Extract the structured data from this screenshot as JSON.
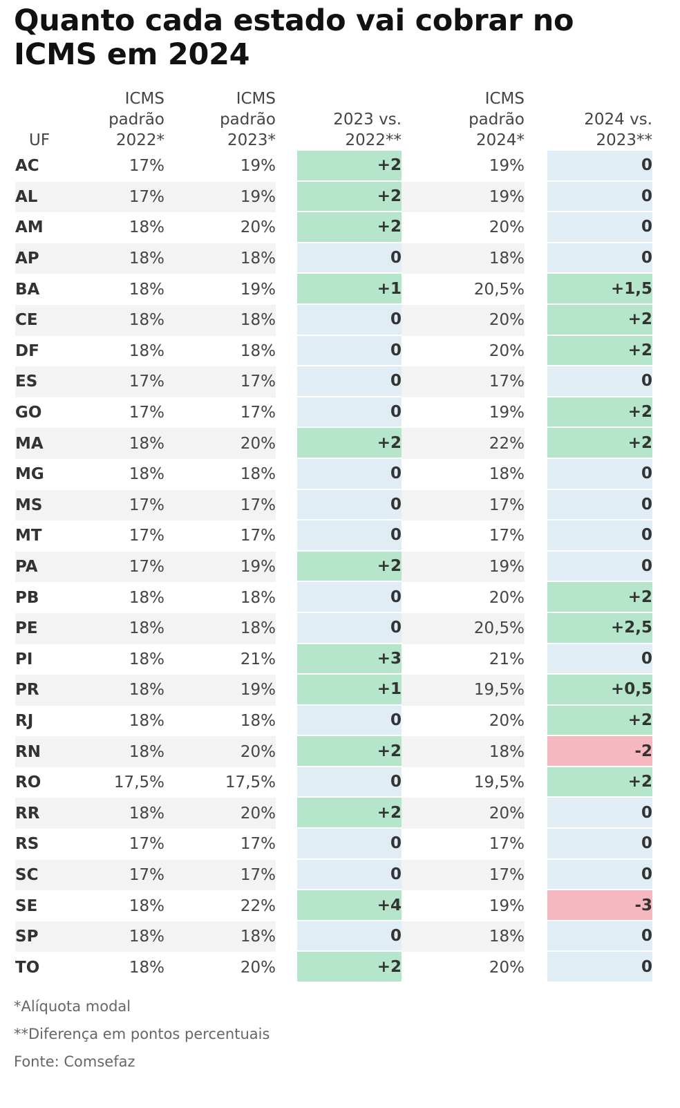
{
  "title": "Quanto cada estado vai cobrar no ICMS em 2024",
  "colors": {
    "increase": "#b5e6cc",
    "no_change": "#e1edf5",
    "decrease": "#f5b8c1",
    "row_shade": "#f3f3f3"
  },
  "chart_data": {
    "type": "table",
    "title": "Quanto cada estado vai cobrar no ICMS em 2024",
    "columns": [
      [
        "UF"
      ],
      [
        "ICMS",
        "padrão",
        "2022*"
      ],
      [
        "ICMS",
        "padrão",
        "2023*"
      ],
      [
        "2023 vs.",
        "2022**"
      ],
      [
        "ICMS",
        "padrão",
        "2024*"
      ],
      [
        "2024 vs.",
        "2023**"
      ]
    ],
    "rows": [
      [
        "AC",
        "17%",
        "19%",
        "+2",
        "19%",
        "0"
      ],
      [
        "AL",
        "17%",
        "19%",
        "+2",
        "19%",
        "0"
      ],
      [
        "AM",
        "18%",
        "20%",
        "+2",
        "20%",
        "0"
      ],
      [
        "AP",
        "18%",
        "18%",
        "0",
        "18%",
        "0"
      ],
      [
        "BA",
        "18%",
        "19%",
        "+1",
        "20,5%",
        "+1,5"
      ],
      [
        "CE",
        "18%",
        "18%",
        "0",
        "20%",
        "+2"
      ],
      [
        "DF",
        "18%",
        "18%",
        "0",
        "20%",
        "+2"
      ],
      [
        "ES",
        "17%",
        "17%",
        "0",
        "17%",
        "0"
      ],
      [
        "GO",
        "17%",
        "17%",
        "0",
        "19%",
        "+2"
      ],
      [
        "MA",
        "18%",
        "20%",
        "+2",
        "22%",
        "+2"
      ],
      [
        "MG",
        "18%",
        "18%",
        "0",
        "18%",
        "0"
      ],
      [
        "MS",
        "17%",
        "17%",
        "0",
        "17%",
        "0"
      ],
      [
        "MT",
        "17%",
        "17%",
        "0",
        "17%",
        "0"
      ],
      [
        "PA",
        "17%",
        "19%",
        "+2",
        "19%",
        "0"
      ],
      [
        "PB",
        "18%",
        "18%",
        "0",
        "20%",
        "+2"
      ],
      [
        "PE",
        "18%",
        "18%",
        "0",
        "20,5%",
        "+2,5"
      ],
      [
        "PI",
        "18%",
        "21%",
        "+3",
        "21%",
        "0"
      ],
      [
        "PR",
        "18%",
        "19%",
        "+1",
        "19,5%",
        "+0,5"
      ],
      [
        "RJ",
        "18%",
        "18%",
        "0",
        "20%",
        "+2"
      ],
      [
        "RN",
        "18%",
        "20%",
        "+2",
        "18%",
        "-2"
      ],
      [
        "RO",
        "17,5%",
        "17,5%",
        "0",
        "19,5%",
        "+2"
      ],
      [
        "RR",
        "18%",
        "20%",
        "+2",
        "20%",
        "0"
      ],
      [
        "RS",
        "17%",
        "17%",
        "0",
        "17%",
        "0"
      ],
      [
        "SC",
        "17%",
        "17%",
        "0",
        "17%",
        "0"
      ],
      [
        "SE",
        "18%",
        "22%",
        "+4",
        "19%",
        "-3"
      ],
      [
        "SP",
        "18%",
        "18%",
        "0",
        "18%",
        "0"
      ],
      [
        "TO",
        "18%",
        "20%",
        "+2",
        "20%",
        "0"
      ]
    ]
  },
  "footnotes": [
    "*Alíquota modal",
    "**Diferença em pontos percentuais",
    "Fonte: Comsefaz"
  ]
}
